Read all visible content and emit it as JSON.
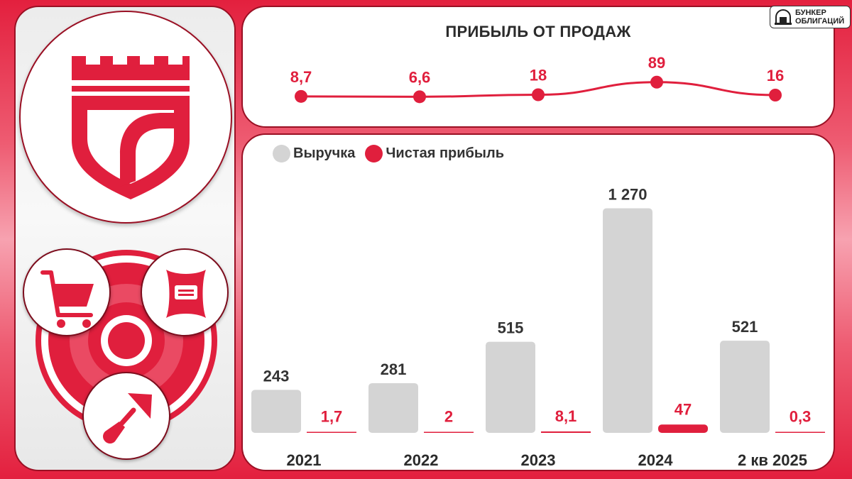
{
  "brand": {
    "line1": "БУНКЕР",
    "line2": "ОБЛИГАЦИЙ"
  },
  "icons": {
    "logo": "fortress-shield-logo",
    "cart": "shopping-cart-icon",
    "bag": "sack-icon",
    "trowel": "trowel-icon"
  },
  "colors": {
    "accent": "#e01f3d",
    "revenue": "#d4d4d4",
    "text": "#333333"
  },
  "sales_profit": {
    "title": "ПРИБЫЛЬ ОТ ПРОДАЖ"
  },
  "legend": {
    "revenue": "Выручка",
    "net_profit": "Чистая прибыль"
  },
  "chart_data": [
    {
      "type": "line",
      "title": "ПРИБЫЛЬ ОТ ПРОДАЖ",
      "categories": [
        "2021",
        "2022",
        "2023",
        "2024",
        "2 кв 2025"
      ],
      "labels": [
        "8,7",
        "6,6",
        "18",
        "89",
        "16"
      ],
      "values": [
        8.7,
        6.6,
        18,
        89,
        16
      ],
      "ylim": [
        0,
        100
      ],
      "grid": false,
      "color": "#e01f3d"
    },
    {
      "type": "bar",
      "categories": [
        "2021",
        "2022",
        "2023",
        "2024",
        "2 кв 2025"
      ],
      "ylim": [
        0,
        1300
      ],
      "grid": false,
      "legend_position": "top-left",
      "series": [
        {
          "name": "Выручка",
          "values": [
            243,
            281,
            515,
            1270,
            521
          ],
          "labels": [
            "243",
            "281",
            "515",
            "1 270",
            "521"
          ],
          "color": "#d4d4d4"
        },
        {
          "name": "Чистая прибыль",
          "values": [
            1.7,
            2,
            8.1,
            47,
            0.3
          ],
          "labels": [
            "1,7",
            "2",
            "8,1",
            "47",
            "0,3"
          ],
          "color": "#e01f3d"
        }
      ]
    }
  ]
}
